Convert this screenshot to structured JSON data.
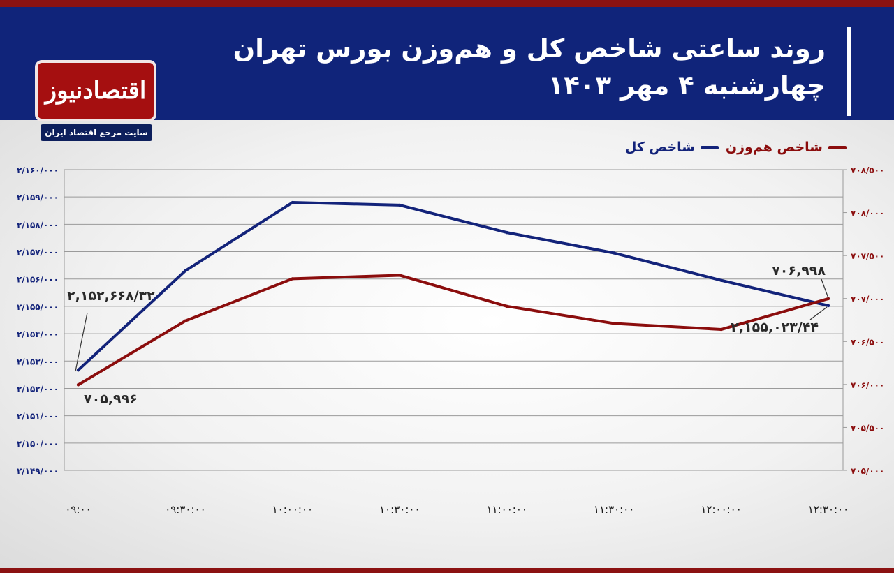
{
  "header": {
    "title_line1": "روند ساعتی شاخص کل و هم‌وزن بورس تهران",
    "title_line2": "چهارشنبه ۴ مهر ۱۴۰۳"
  },
  "logo": {
    "name": "اقتصادنیوز",
    "tagline": "سایت مرجع اقتصاد ایران"
  },
  "colors": {
    "header_bg": "#10247a",
    "accent_red": "#8b1212",
    "series_total": "#13237a",
    "series_equal": "#8b0d0d"
  },
  "chart_data": {
    "type": "line",
    "x": [
      "۰۹:۰۰",
      "۰۹:۳۰:۰۰",
      "۱۰:۰۰:۰۰",
      "۱۰:۳۰:۰۰",
      "۱۱:۰۰:۰۰",
      "۱۱:۳۰:۰۰",
      "۱۲:۰۰:۰۰",
      "۱۲:۳۰:۰۰"
    ],
    "left_axis": {
      "ylim": [
        2149000,
        2160000
      ],
      "ticks": [
        2149000,
        2150000,
        2151000,
        2152000,
        2153000,
        2154000,
        2155000,
        2156000,
        2157000,
        2158000,
        2159000,
        2160000
      ],
      "tick_labels": [
        "۲/۱۴۹/۰۰۰",
        "۲/۱۵۰/۰۰۰",
        "۲/۱۵۱/۰۰۰",
        "۲/۱۵۲/۰۰۰",
        "۲/۱۵۳/۰۰۰",
        "۲/۱۵۴/۰۰۰",
        "۲/۱۵۵/۰۰۰",
        "۲/۱۵۶/۰۰۰",
        "۲/۱۵۷/۰۰۰",
        "۲/۱۵۸/۰۰۰",
        "۲/۱۵۹/۰۰۰",
        "۲/۱۶۰/۰۰۰"
      ]
    },
    "right_axis": {
      "ylim": [
        705000,
        708500
      ],
      "ticks": [
        705000,
        705500,
        706000,
        706500,
        707000,
        707500,
        708000,
        708500
      ],
      "tick_labels": [
        "۷۰۵/۰۰۰",
        "۷۰۵/۵۰۰",
        "۷۰۶/۰۰۰",
        "۷۰۶/۵۰۰",
        "۷۰۷/۰۰۰",
        "۷۰۷/۵۰۰",
        "۷۰۸/۰۰۰",
        "۷۰۸/۵۰۰"
      ]
    },
    "grid": true,
    "legend_position": "top-right",
    "series": [
      {
        "name": "شاخص کل",
        "axis": "left",
        "color": "#13237a",
        "values": [
          2152668.32,
          2156300,
          2158800,
          2158700,
          2157700,
          2156950,
          2155950,
          2155023.44
        ]
      },
      {
        "name": "شاخص هم‌وزن",
        "axis": "right",
        "color": "#8b0d0d",
        "values": [
          705996,
          706740,
          707230,
          707270,
          706910,
          706710,
          706640,
          706998
        ]
      }
    ],
    "annotations": [
      {
        "text": "۲,۱۵۲,۶۶۸/۳۲",
        "series": 0,
        "point": 0
      },
      {
        "text": "۷۰۵,۹۹۶",
        "series": 1,
        "point": 0
      },
      {
        "text": "۷۰۶,۹۹۸",
        "series": 1,
        "point": 7
      },
      {
        "text": "۲,۱۵۵,۰۲۳/۴۴",
        "series": 0,
        "point": 7
      }
    ]
  }
}
